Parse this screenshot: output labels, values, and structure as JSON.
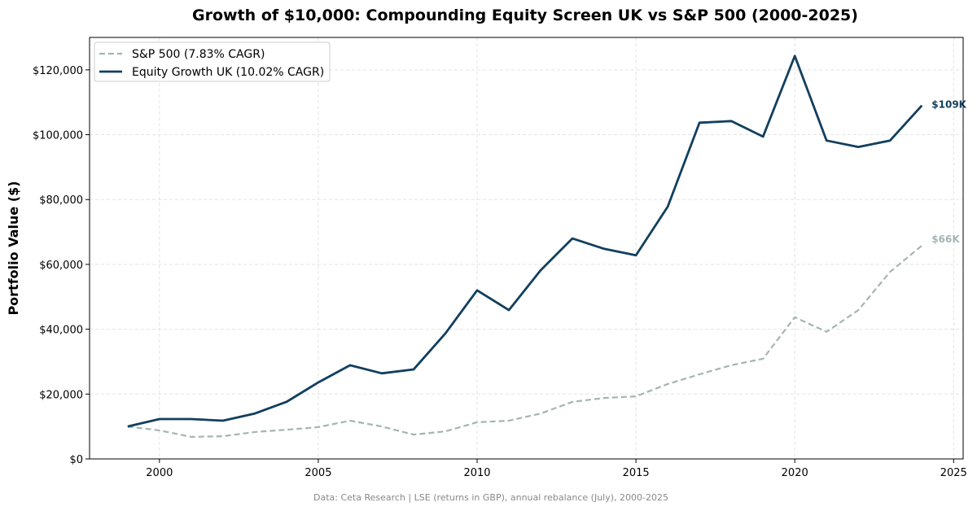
{
  "chart_data": {
    "type": "line",
    "title": "Growth of $10,000: Compounding Equity Screen UK vs S&P 500 (2000-2025)",
    "xlabel": "",
    "ylabel": "Portfolio Value ($)",
    "xlim": [
      1997.8,
      2025.3
    ],
    "ylim": [
      0,
      130000
    ],
    "xticks": [
      2000,
      2005,
      2010,
      2015,
      2020,
      2025
    ],
    "yticks": [
      0,
      20000,
      40000,
      60000,
      80000,
      100000,
      120000
    ],
    "ytick_labels": [
      "$0",
      "$20,000",
      "$40,000",
      "$60,000",
      "$80,000",
      "$100,000",
      "$120,000"
    ],
    "grid": true,
    "legend_position": "top-left",
    "x": [
      1999,
      2000,
      2001,
      2002,
      2003,
      2004,
      2005,
      2006,
      2007,
      2008,
      2009,
      2010,
      2011,
      2012,
      2013,
      2014,
      2015,
      2016,
      2017,
      2018,
      2019,
      2020,
      2021,
      2022,
      2023,
      2024
    ],
    "series": [
      {
        "name": "S&P 500 (7.83% CAGR)",
        "color": "#a5b4b4",
        "style": "dashed",
        "end_label": "$66K",
        "values": [
          10000,
          8800,
          6800,
          7000,
          8300,
          9000,
          9800,
          11800,
          10000,
          7500,
          8500,
          11300,
          11800,
          14000,
          17600,
          18800,
          19300,
          23100,
          26100,
          28900,
          30900,
          43700,
          39200,
          45900,
          57700,
          65800
        ]
      },
      {
        "name": "Equity Growth UK (10.02% CAGR)",
        "color": "#123f5e",
        "style": "solid",
        "end_label": "$109K",
        "values": [
          10000,
          12300,
          12300,
          11800,
          14000,
          17600,
          23600,
          28900,
          26400,
          27600,
          38700,
          52000,
          45900,
          58200,
          68000,
          64800,
          62800,
          77800,
          103700,
          104200,
          99400,
          124300,
          98200,
          96200,
          98200,
          109000
        ]
      }
    ],
    "footnote": "Data: Ceta Research | LSE (returns in GBP), annual rebalance (July), 2000-2025"
  }
}
